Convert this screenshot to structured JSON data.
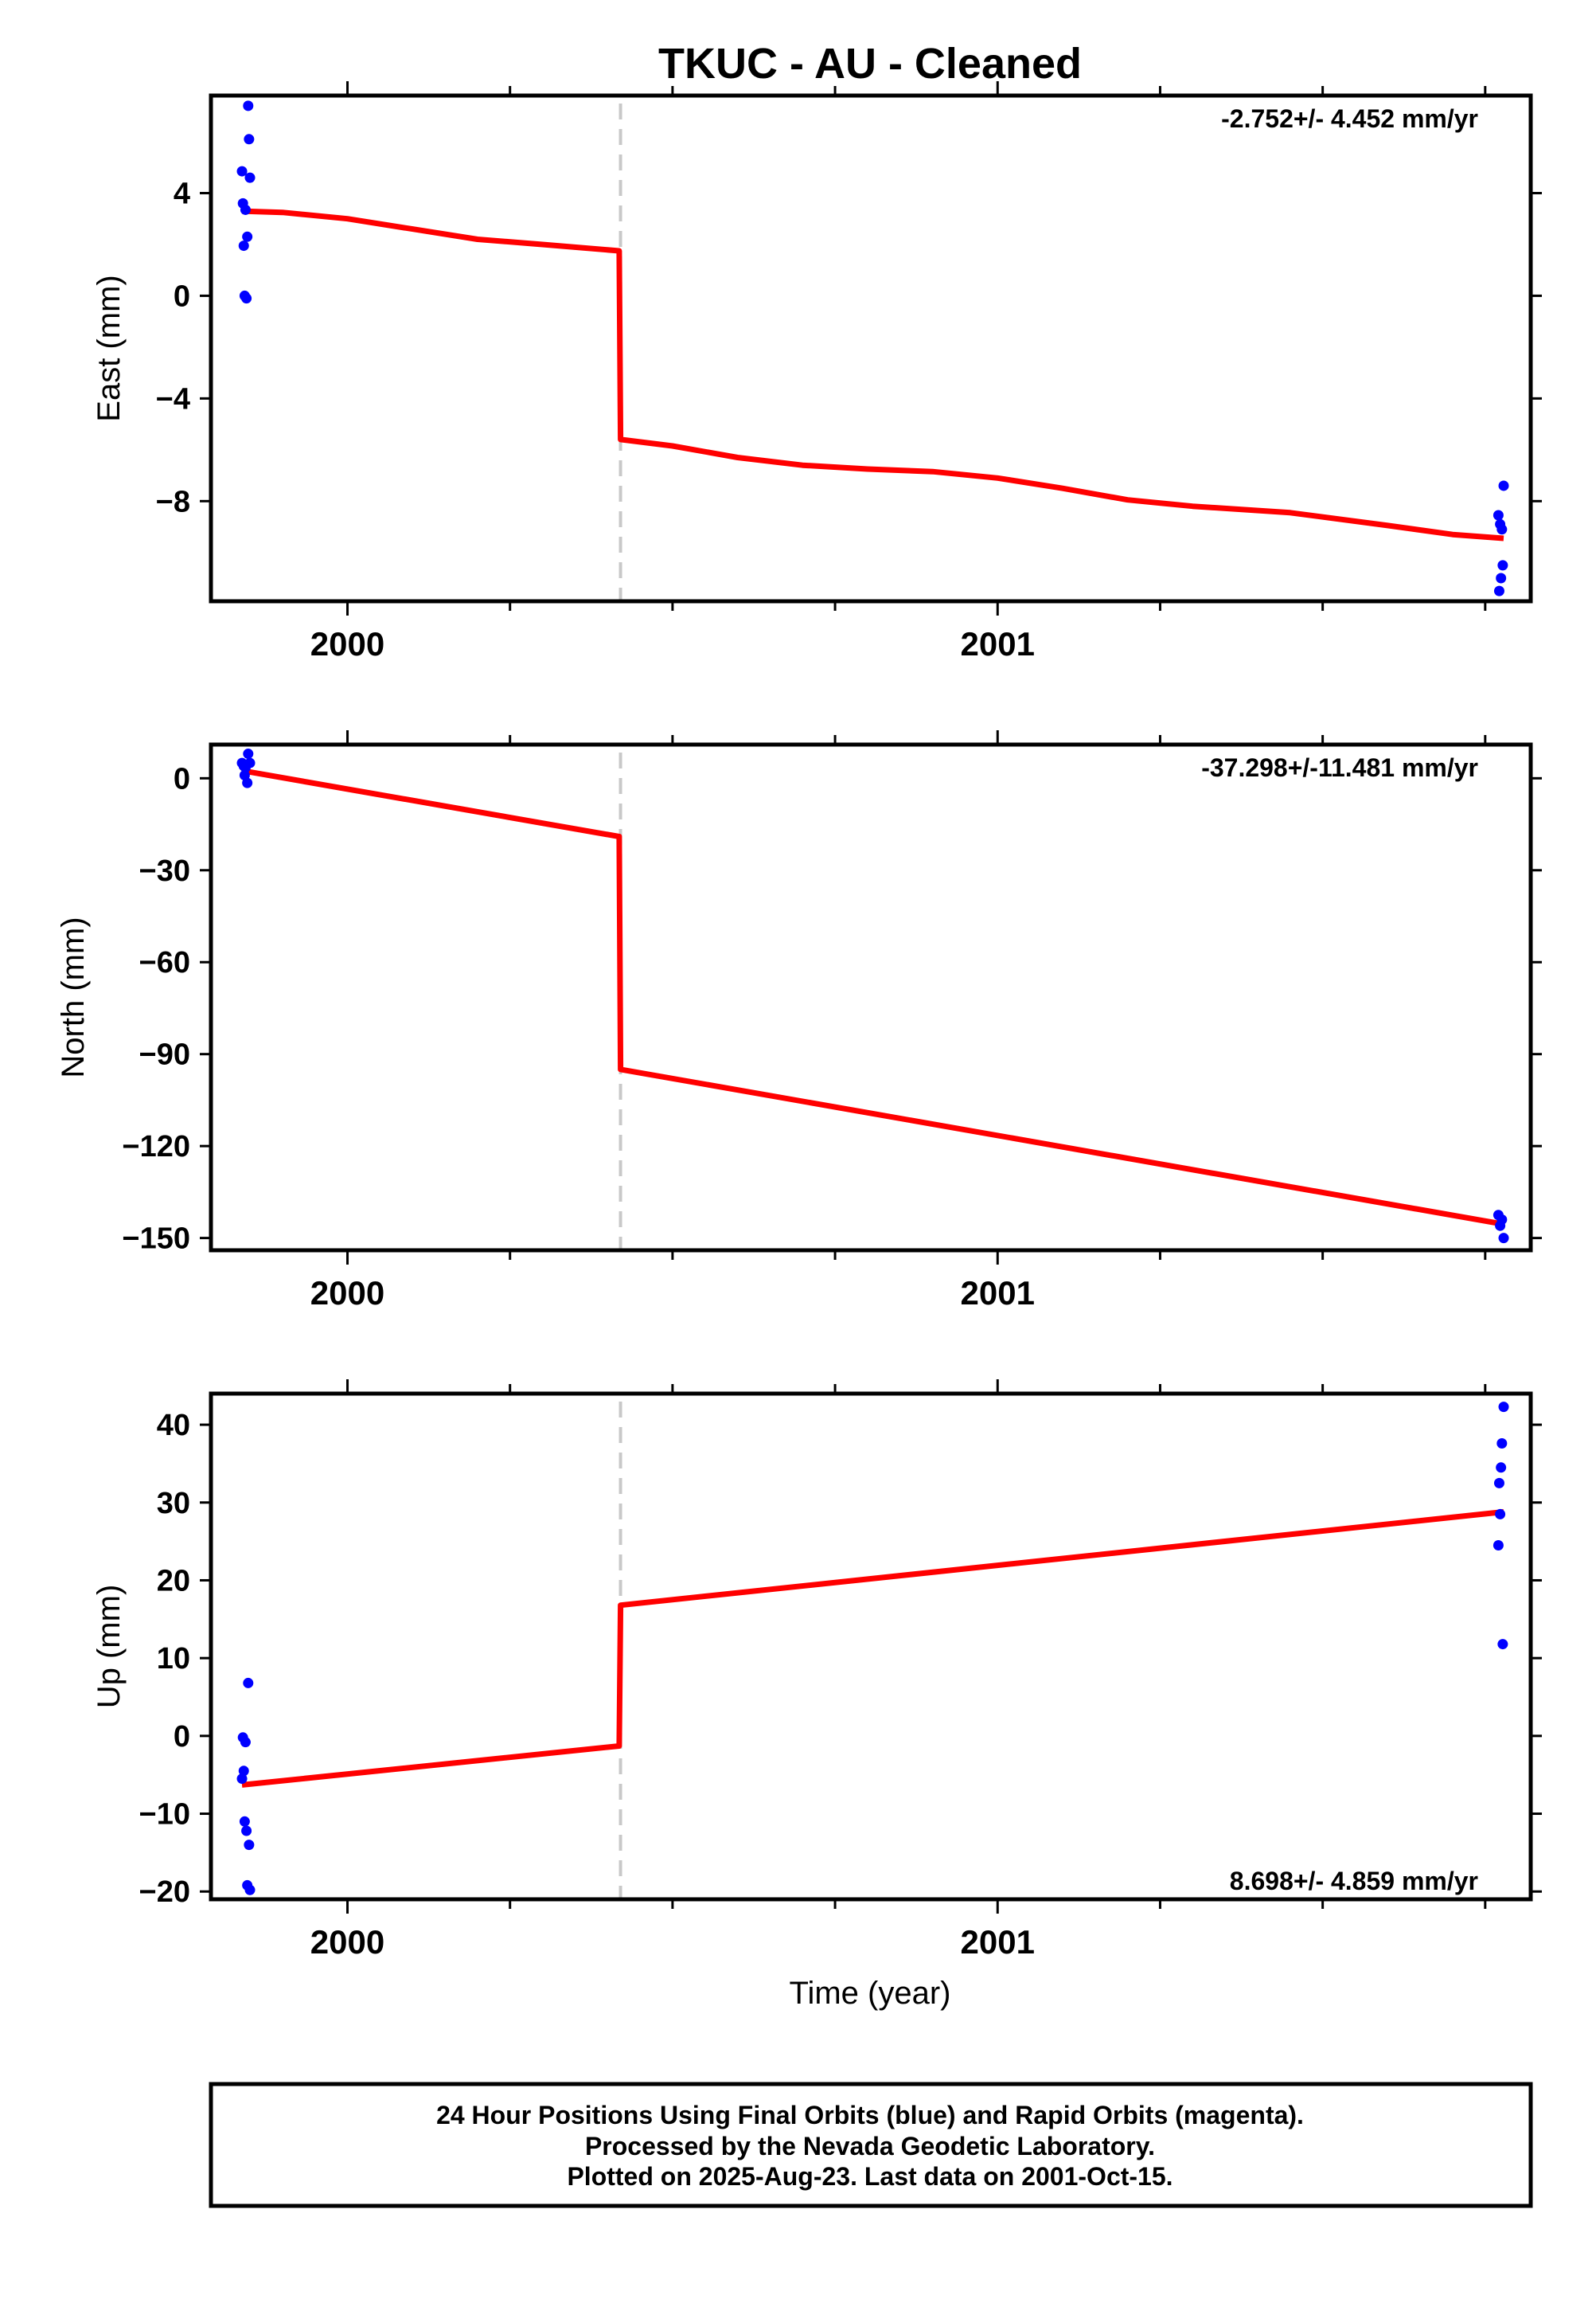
{
  "title": "TKUC  - AU - Cleaned",
  "xlabel": "Time (year)",
  "footer": {
    "line1": "24 Hour Positions Using Final Orbits (blue) and Rapid Orbits (magenta).",
    "line2": "Processed by the Nevada Geodetic Laboratory.",
    "line3": "Plotted on 2025-Aug-23. Last data on 2001-Oct-15."
  },
  "colors": {
    "points": "#0000ff",
    "model": "#ff0000",
    "offset_line": "#c8c8c8",
    "frame": "#000000"
  },
  "chart_data": [
    {
      "type": "scatter",
      "component": "East",
      "ylabel": "East (mm)",
      "rate_text": "-2.752+/- 4.452 mm/yr",
      "rate_position": "top-right",
      "xlim": [
        1999.79,
        2001.82
      ],
      "ylim": [
        -11.9,
        7.8
      ],
      "xticks": [
        2000,
        2001
      ],
      "xminor": [
        1999.75,
        2000.25,
        2000.5,
        2000.75,
        2001.25,
        2001.5,
        2001.75
      ],
      "yticks": [
        4,
        0,
        -4,
        -8
      ],
      "yticklabels": [
        "4",
        "0",
        "−4",
        "−8"
      ],
      "offset_epoch": 2000.42,
      "points": [
        [
          1999.8378,
          4.85
        ],
        [
          1999.8392,
          3.6
        ],
        [
          1999.8405,
          1.95
        ],
        [
          1999.8419,
          0.0
        ],
        [
          1999.8432,
          3.35
        ],
        [
          1999.8446,
          -0.1
        ],
        [
          1999.8459,
          2.3
        ],
        [
          1999.8473,
          7.4
        ],
        [
          1999.8486,
          6.1
        ],
        [
          1999.85,
          4.6
        ],
        [
          2001.7703,
          -8.55
        ],
        [
          2001.7716,
          -11.5
        ],
        [
          2001.773,
          -8.9
        ],
        [
          2001.7743,
          -11.0
        ],
        [
          2001.7757,
          -9.1
        ],
        [
          2001.777,
          -10.5
        ],
        [
          2001.7784,
          -7.4
        ]
      ],
      "model": [
        [
          1999.8378,
          3.3
        ],
        [
          1999.9,
          3.25
        ],
        [
          2000.0,
          3.0
        ],
        [
          2000.1,
          2.6
        ],
        [
          2000.2,
          2.2
        ],
        [
          2000.3,
          2.0
        ],
        [
          2000.418,
          1.75
        ],
        [
          2000.42,
          -5.6
        ],
        [
          2000.5,
          -5.85
        ],
        [
          2000.6,
          -6.3
        ],
        [
          2000.7,
          -6.6
        ],
        [
          2000.8,
          -6.75
        ],
        [
          2000.9,
          -6.85
        ],
        [
          2001.0,
          -7.1
        ],
        [
          2001.1,
          -7.5
        ],
        [
          2001.2,
          -7.95
        ],
        [
          2001.3,
          -8.2
        ],
        [
          2001.45,
          -8.45
        ],
        [
          2001.6,
          -8.95
        ],
        [
          2001.7,
          -9.3
        ],
        [
          2001.7784,
          -9.45
        ]
      ]
    },
    {
      "type": "scatter",
      "component": "North",
      "ylabel": "North (mm)",
      "rate_text": "-37.298+/-11.481 mm/yr",
      "rate_position": "top-right",
      "xlim": [
        1999.79,
        2001.82
      ],
      "ylim": [
        -154,
        11
      ],
      "xticks": [
        2000,
        2001
      ],
      "xminor": [
        1999.75,
        2000.25,
        2000.5,
        2000.75,
        2001.25,
        2001.5,
        2001.75
      ],
      "yticks": [
        0,
        -30,
        -60,
        -90,
        -120,
        -150
      ],
      "yticklabels": [
        "0",
        "−30",
        "−60",
        "−90",
        "−120",
        "−150"
      ],
      "offset_epoch": 2000.42,
      "points": [
        [
          1999.8378,
          5.0
        ],
        [
          1999.8405,
          4.0
        ],
        [
          1999.8419,
          1.0
        ],
        [
          1999.8432,
          3.5
        ],
        [
          1999.8459,
          -1.5
        ],
        [
          1999.8473,
          8.0
        ],
        [
          1999.85,
          5.0
        ],
        [
          2001.7703,
          -142.5
        ],
        [
          2001.773,
          -146.0
        ],
        [
          2001.7757,
          -144.0
        ],
        [
          2001.7784,
          -150.0
        ]
      ],
      "model": [
        [
          1999.8378,
          2.5
        ],
        [
          2000.418,
          -19.0
        ],
        [
          2000.42,
          -95.0
        ],
        [
          2001.7784,
          -145.5
        ]
      ]
    },
    {
      "type": "scatter",
      "component": "Up",
      "ylabel": "Up (mm)",
      "rate_text": "8.698+/- 4.859 mm/yr",
      "rate_position": "bottom-right",
      "xlim": [
        1999.79,
        2001.82
      ],
      "ylim": [
        -21,
        44
      ],
      "xticks": [
        2000,
        2001
      ],
      "xminor": [
        1999.75,
        2000.25,
        2000.5,
        2000.75,
        2001.25,
        2001.5,
        2001.75
      ],
      "yticks": [
        40,
        30,
        20,
        10,
        0,
        -10,
        -20
      ],
      "yticklabels": [
        "40",
        "30",
        "20",
        "10",
        "0",
        "−10",
        "−20"
      ],
      "offset_epoch": 2000.42,
      "points": [
        [
          1999.8378,
          -5.5
        ],
        [
          1999.8392,
          -0.2
        ],
        [
          1999.8405,
          -4.5
        ],
        [
          1999.8419,
          -11.0
        ],
        [
          1999.8432,
          -0.8
        ],
        [
          1999.8446,
          -12.2
        ],
        [
          1999.8459,
          -19.2
        ],
        [
          1999.8473,
          6.8
        ],
        [
          1999.8486,
          -14.0
        ],
        [
          1999.85,
          -19.8
        ],
        [
          2001.7703,
          24.5
        ],
        [
          2001.7716,
          32.5
        ],
        [
          2001.773,
          28.5
        ],
        [
          2001.7743,
          34.5
        ],
        [
          2001.7757,
          37.6
        ],
        [
          2001.777,
          11.8
        ],
        [
          2001.7784,
          42.3
        ]
      ],
      "model": [
        [
          1999.8378,
          -6.3
        ],
        [
          2000.418,
          -1.3
        ],
        [
          2000.42,
          16.8
        ],
        [
          2001.7784,
          28.8
        ]
      ]
    }
  ]
}
